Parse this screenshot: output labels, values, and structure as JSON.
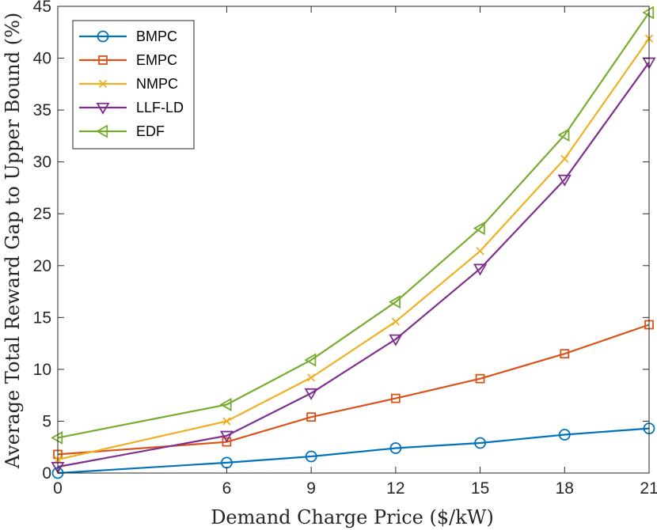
{
  "chart_data": {
    "type": "line",
    "title": "",
    "xlabel": "Demand Charge Price ($/kW)",
    "ylabel": "Average Total Reward Gap to Upper Bound (%)",
    "x": [
      0,
      6,
      9,
      12,
      15,
      18,
      21
    ],
    "xticks": [
      "0",
      "6",
      "9",
      "12",
      "15",
      "18",
      "21"
    ],
    "yticks": [
      "0",
      "5",
      "10",
      "15",
      "20",
      "25",
      "30",
      "35",
      "40",
      "45"
    ],
    "xlim": [
      0,
      21
    ],
    "ylim": [
      0,
      45
    ],
    "grid": false,
    "legend_position": "top-left",
    "series": [
      {
        "name": "BMPC",
        "color": "#0072BD",
        "marker": "circle",
        "values": [
          0.0,
          1.0,
          1.6,
          2.4,
          2.9,
          3.7,
          4.3
        ]
      },
      {
        "name": "EMPC",
        "color": "#D95319",
        "marker": "square",
        "values": [
          1.8,
          3.0,
          5.4,
          7.2,
          9.1,
          11.5,
          14.3
        ]
      },
      {
        "name": "NMPC",
        "color": "#EDB120",
        "marker": "x",
        "values": [
          1.3,
          5.0,
          9.2,
          14.6,
          21.4,
          30.3,
          41.9
        ]
      },
      {
        "name": "LLF-LD",
        "color": "#7E2F8E",
        "marker": "triangle-down",
        "values": [
          0.6,
          3.6,
          7.7,
          12.9,
          19.7,
          28.3,
          39.6
        ]
      },
      {
        "name": "EDF",
        "color": "#77AC30",
        "marker": "triangle-left",
        "values": [
          3.4,
          6.6,
          10.9,
          16.5,
          23.6,
          32.6,
          44.4
        ]
      }
    ]
  }
}
